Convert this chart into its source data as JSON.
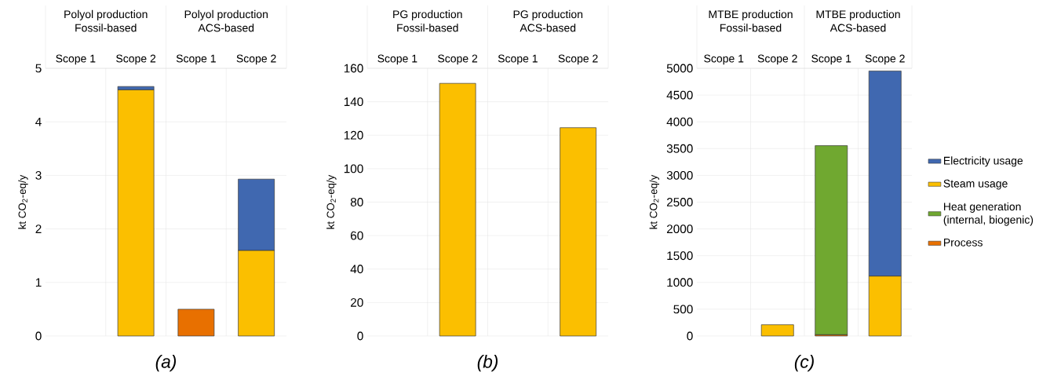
{
  "chart_data": [
    {
      "type": "bar",
      "stacked": true,
      "ylabel": "kt CO$_{2}$-eq/y",
      "categories": [
        "Scope 1",
        "Scope 2",
        "Scope 1",
        "Scope 2"
      ],
      "ylim": [
        0,
        5
      ],
      "yticks": [
        0,
        1,
        2,
        3,
        4,
        5
      ],
      "grid": true,
      "annotations": [
        "Polyol production",
        "Fossil-based",
        "Polyol production",
        "ACS-based",
        "(a)"
      ],
      "series": [
        {
          "color": "#e87000",
          "values": [
            null,
            null,
            0.5,
            null
          ]
        },
        {
          "color": "#fbbf00",
          "values": [
            null,
            4.6,
            null,
            1.6
          ]
        },
        {
          "color": "#4068b0",
          "values": [
            null,
            0.06,
            null,
            1.33
          ]
        }
      ]
    },
    {
      "type": "bar",
      "stacked": true,
      "ylabel": "kt CO$_{2}$-eq/y",
      "categories": [
        "Scope 1",
        "Scope 2",
        "Scope 1",
        "Scope 2"
      ],
      "ylim": [
        0,
        160
      ],
      "yticks": [
        0,
        20,
        40,
        60,
        80,
        100,
        120,
        140,
        160
      ],
      "grid": true,
      "annotations": [
        "PG production",
        "Fossil-based",
        "PG production",
        "ACS-based",
        "(b)"
      ],
      "series": [
        {
          "color": "#fbbf00",
          "values": [
            null,
            151,
            null,
            124.5
          ]
        }
      ]
    },
    {
      "type": "bar",
      "stacked": true,
      "ylabel": "kt CO$_{2}$-eq/y",
      "categories": [
        "Scope 1",
        "Scope 2",
        "Scope 1",
        "Scope 2"
      ],
      "ylim": [
        0,
        5000
      ],
      "yticks": [
        0,
        500,
        1000,
        1500,
        2000,
        2500,
        3000,
        3500,
        4000,
        4500,
        5000
      ],
      "grid": true,
      "legend": "right",
      "annotations": [
        "MTBE production",
        "Fossil-based",
        "MTBE production",
        "ACS-based",
        "(c)"
      ],
      "series": [
        {
          "name": "Process",
          "color": "#e87000",
          "values": [
            null,
            null,
            25,
            null
          ]
        },
        {
          "name": "Heat generation (internal, biogenic)",
          "color": "#70a830",
          "values": [
            null,
            null,
            3530,
            null
          ]
        },
        {
          "name": "Steam usage",
          "color": "#fbbf00",
          "values": [
            null,
            210,
            null,
            1120
          ]
        },
        {
          "name": "Electricity usage",
          "color": "#4068b0",
          "values": [
            null,
            null,
            null,
            3830
          ]
        }
      ]
    }
  ]
}
